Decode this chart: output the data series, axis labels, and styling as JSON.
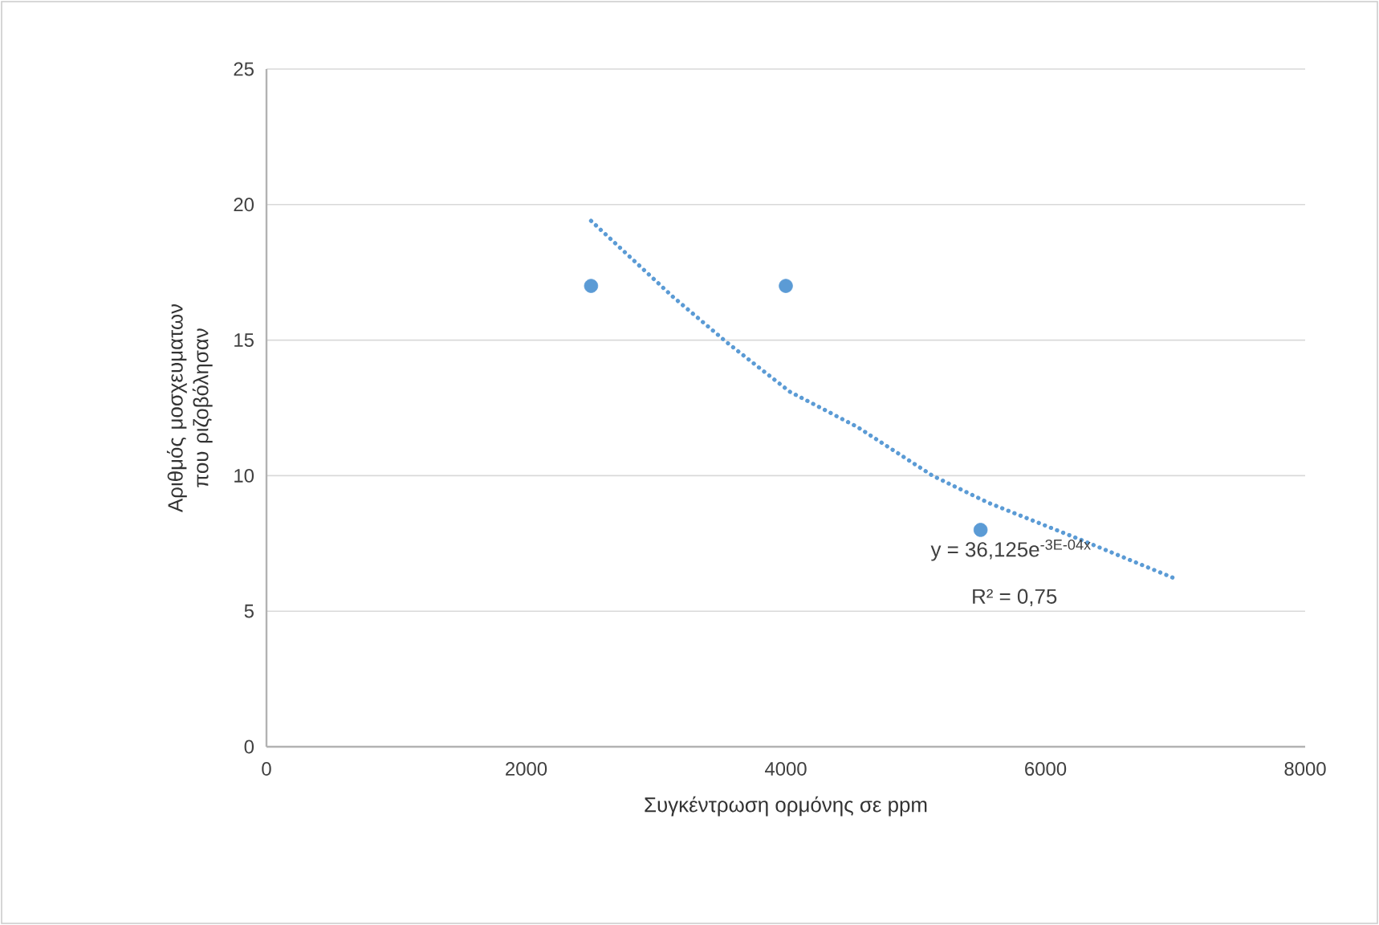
{
  "chart_data": {
    "type": "scatter",
    "xlabel": "Συγκέντρωση ορμόνης σε ppm",
    "ylabel": "Αριθμός μοσχευματων που ριζοβόλησαν",
    "series": [
      {
        "color": "#5b9bd5",
        "marker": "circle",
        "x": [
          2500,
          4000,
          5500
        ],
        "values": [
          17,
          17,
          8
        ]
      },
      {
        "type": "line",
        "color": "#5b9bd5",
        "marker": "none",
        "line_style": "dotted",
        "x": [
          2500,
          3130,
          3550,
          4030,
          4550,
          5130,
          5560,
          6290,
          7000
        ],
        "values": [
          19.4,
          16.6,
          14.9,
          13.1,
          11.8,
          10.0,
          9.0,
          7.6,
          6.2
        ]
      }
    ],
    "annotations": [
      "y = 36,125e$^{-3E-04x}$",
      "R² = 0,75"
    ],
    "xlim": [
      0,
      8000
    ],
    "xticks": [
      0,
      2000,
      4000,
      6000,
      8000
    ],
    "ylim": [
      0,
      25
    ],
    "yticks": [
      0,
      5,
      10,
      15,
      20,
      25
    ],
    "grid": "y"
  }
}
